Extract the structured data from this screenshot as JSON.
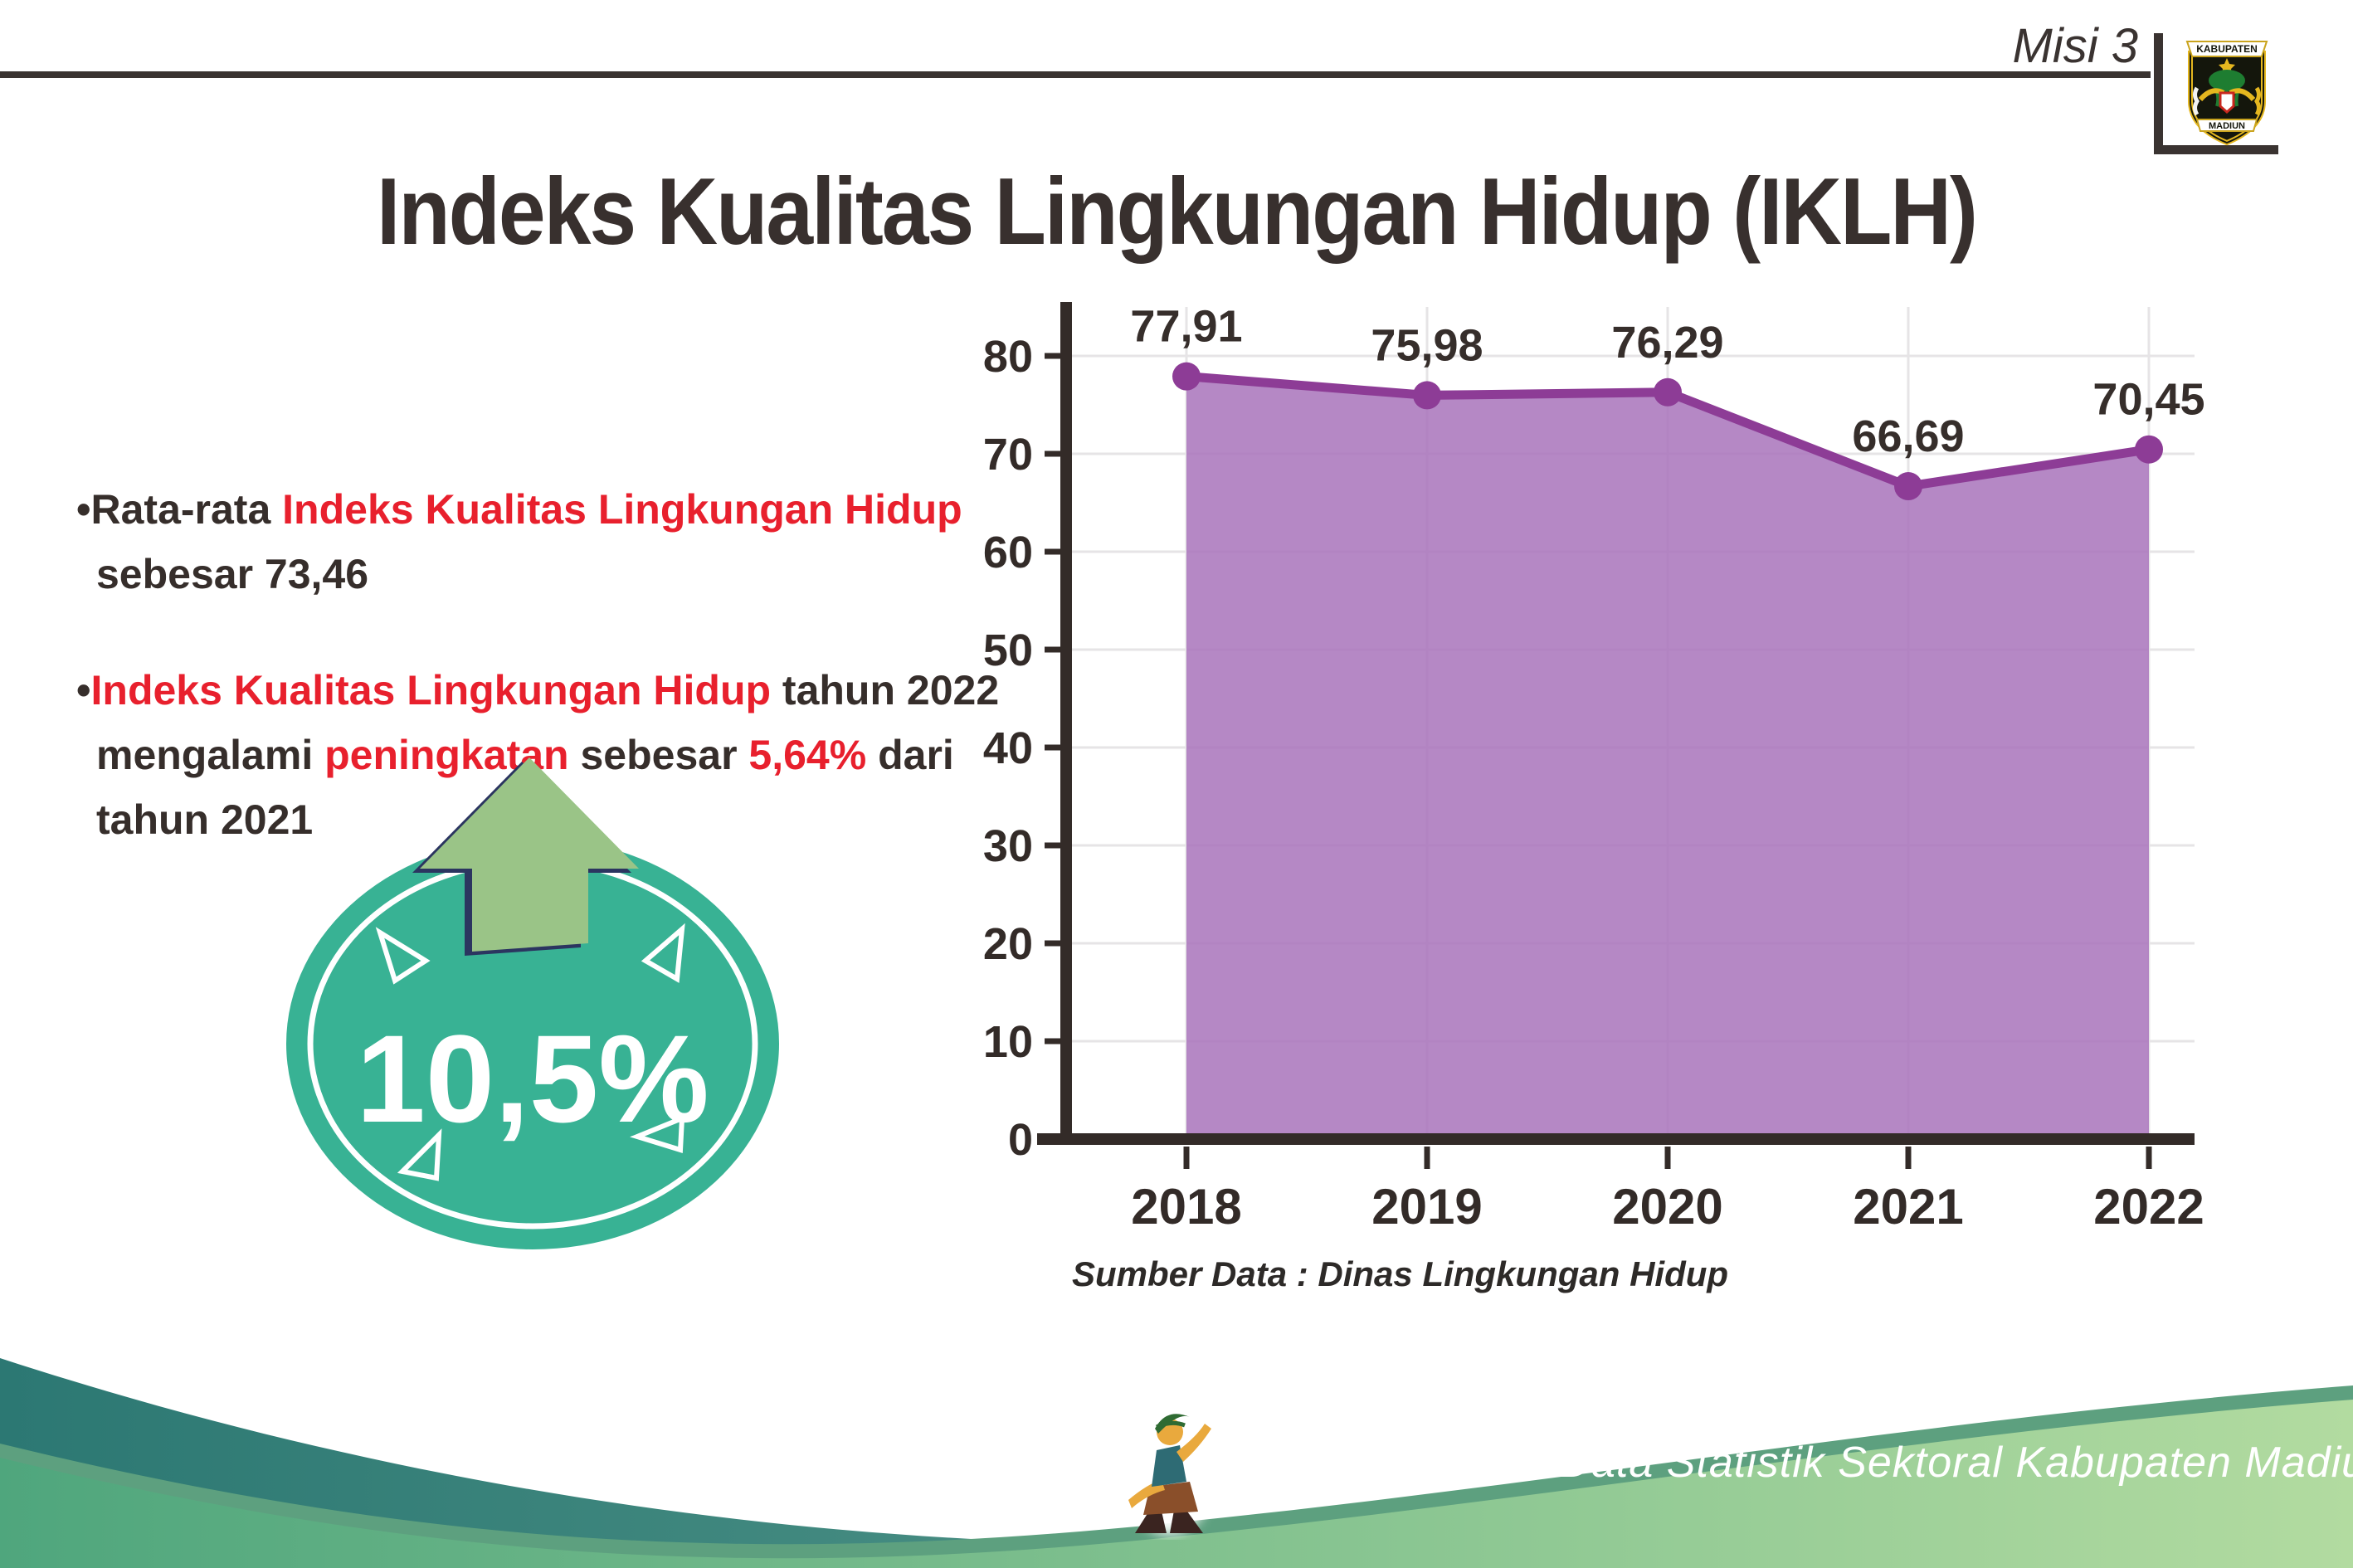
{
  "header": {
    "misi_label": "Misi 3",
    "title": "Indeks Kualitas Lingkungan Hidup (IKLH)",
    "logo_top_text": "KABUPATEN",
    "logo_bottom_text": "MADIUN"
  },
  "bullets": [
    {
      "marker": "•",
      "segments": [
        {
          "t": "Rata-rata ",
          "c": "dark"
        },
        {
          "t": "Indeks Kualitas Lingkungan Hidup",
          "c": "red"
        },
        {
          "t": " sebesar 73,46",
          "c": "dark"
        }
      ]
    },
    {
      "marker": "•",
      "segments": [
        {
          "t": "Indeks Kualitas Lingkungan Hidup",
          "c": "red"
        },
        {
          "t": " tahun 2022 mengalami ",
          "c": "dark"
        },
        {
          "t": "peningkatan",
          "c": "red"
        },
        {
          "t": " sebesar ",
          "c": "dark"
        },
        {
          "t": "5,64%",
          "c": "red"
        },
        {
          "t": " dari tahun 2021",
          "c": "dark"
        }
      ]
    }
  ],
  "badge": {
    "value": "10,5%",
    "meaning": "increase-indicator"
  },
  "chart_data": {
    "type": "area",
    "title": "",
    "xlabel": "",
    "ylabel": "",
    "categories": [
      "2018",
      "2019",
      "2020",
      "2021",
      "2022"
    ],
    "values": [
      77.91,
      75.98,
      76.29,
      66.69,
      70.45
    ],
    "value_labels": [
      "77,91",
      "75,98",
      "76,29",
      "66,69",
      "70,45"
    ],
    "ylim": [
      0,
      80
    ],
    "ytick_step": 10,
    "grid": true,
    "legend_position": "none",
    "source_note": "Sumber Data : Dinas Lingkungan Hidup"
  },
  "footer": {
    "credit": "Media Infografis Data Statistik Sektoral Kabupaten Madiun |"
  },
  "colors": {
    "text_dark": "#362e2b",
    "accent_red": "#e8202d",
    "axis_dark": "#332b28",
    "grid_gray": "#e6e4e6",
    "area_fill": "#a873bb",
    "line_purple": "#8d3c96",
    "badge_teal": "#38b294",
    "arrow_green": "#9ac487",
    "arrow_shadow_navy": "#2b3560",
    "wave_teal_dark": "#2c7873",
    "wave_teal_light": "#68a795",
    "wave_green_dark": "#4fa67d",
    "wave_green_light": "#b2dba0",
    "wave_accent": "#5da07f"
  }
}
